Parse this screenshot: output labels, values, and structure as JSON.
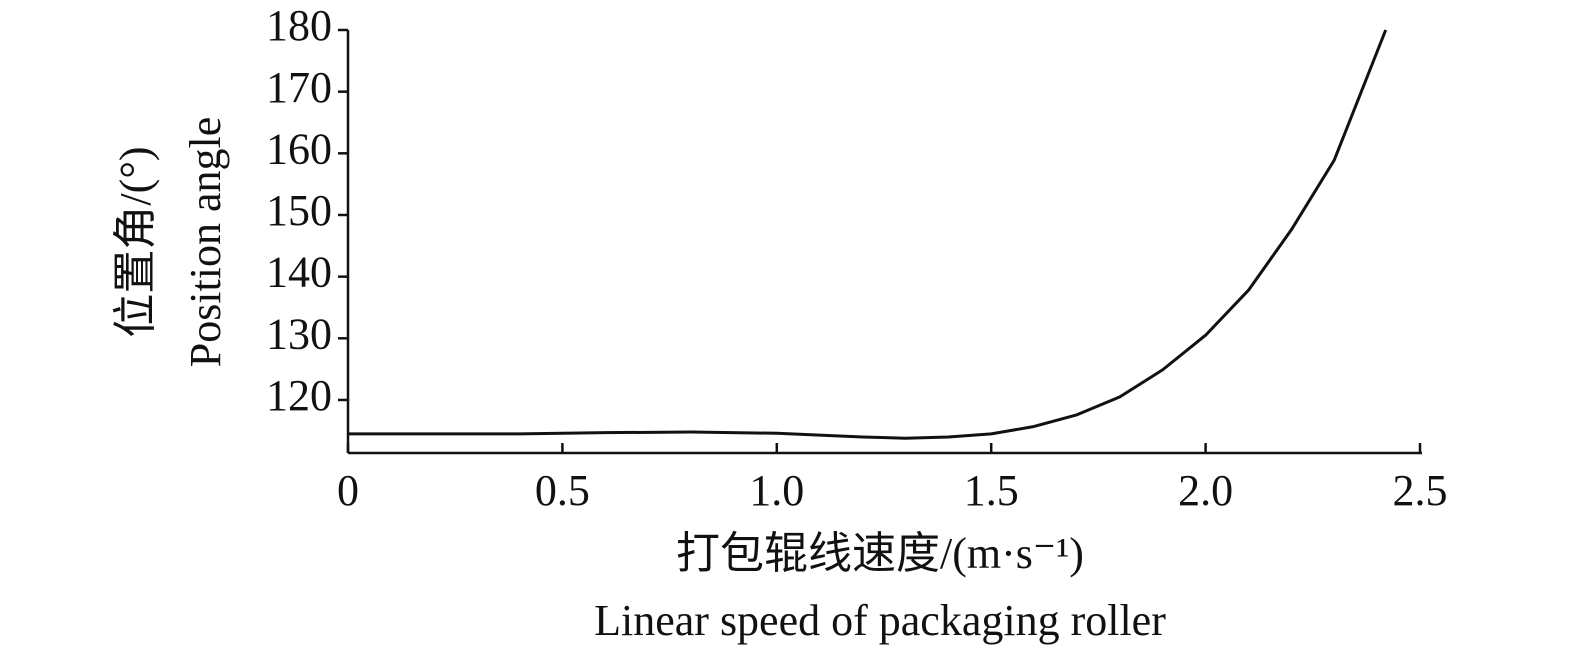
{
  "chart_data": {
    "type": "line",
    "y_label": [
      "位置角/(°)",
      "Position angle"
    ],
    "x_label": [
      "打包辊线速度/(m·s⁻¹)",
      "Linear speed of packaging roller"
    ],
    "series": [
      {
        "name": "Position angle",
        "color": "#111111",
        "x": [
          0,
          0.2,
          0.4,
          0.6,
          0.8,
          1.0,
          1.1,
          1.2,
          1.3,
          1.4,
          1.5,
          1.6,
          1.7,
          1.8,
          1.9,
          2.0,
          2.1,
          2.2,
          2.3,
          2.42
        ],
        "values": [
          114.5,
          114.5,
          114.5,
          114.7,
          114.8,
          114.6,
          114.3,
          114.0,
          113.8,
          114.0,
          114.5,
          115.7,
          117.6,
          120.5,
          124.9,
          130.5,
          137.8,
          147.6,
          158.9,
          180
        ]
      }
    ],
    "xlim": [
      0,
      2.5
    ],
    "xticks": [
      0,
      0.5,
      {
        "value": 1,
        "label": "1.0"
      },
      1.5,
      {
        "value": 2,
        "label": "2.0"
      },
      2.5
    ],
    "ylim": [
      111.4,
      180
    ],
    "yticks": [
      120,
      130,
      140,
      150,
      160,
      170,
      180
    ]
  }
}
